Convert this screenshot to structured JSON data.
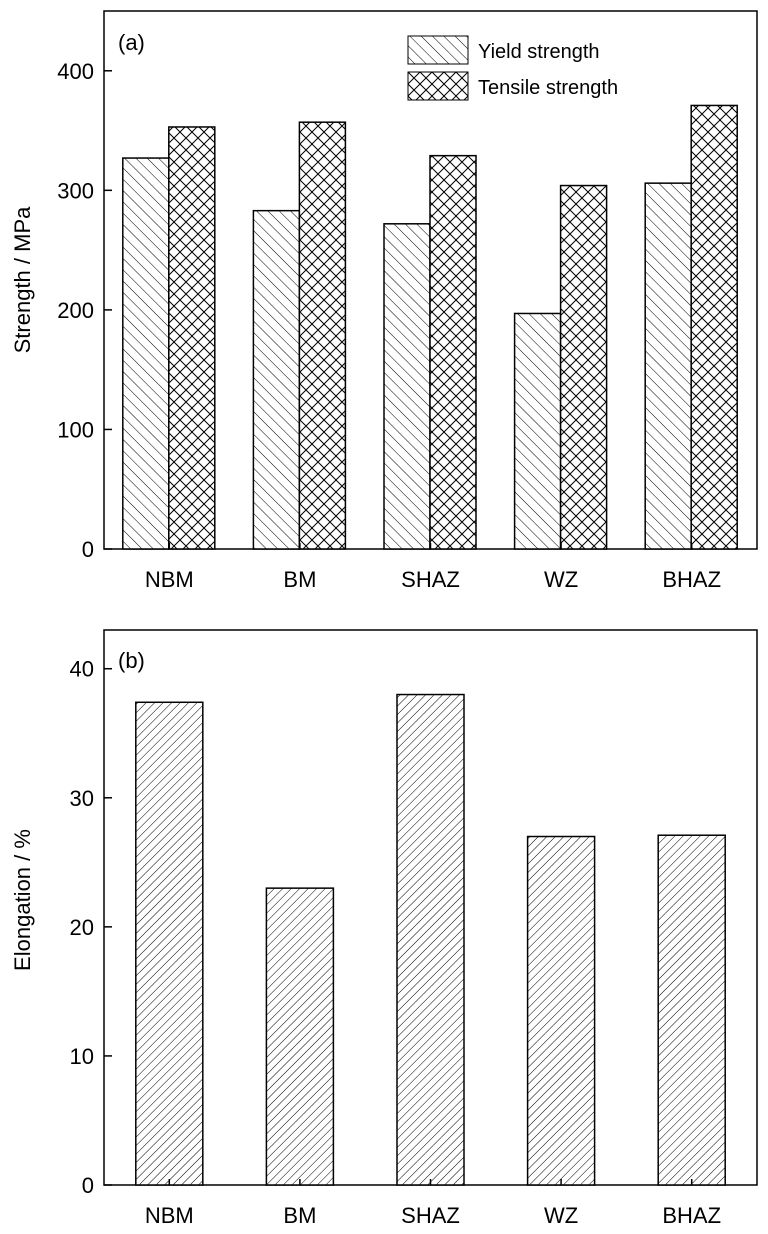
{
  "chart_data": [
    {
      "type": "bar",
      "panel_label": "(a)",
      "categories": [
        "NBM",
        "BM",
        "SHAZ",
        "WZ",
        "BHAZ"
      ],
      "series": [
        {
          "name": "Yield strength",
          "values": [
            327,
            283,
            272,
            197,
            306
          ],
          "hatch": "diagonal-backslash"
        },
        {
          "name": "Tensile strength",
          "values": [
            353,
            357,
            329,
            304,
            371
          ],
          "hatch": "crosshatch"
        }
      ],
      "ylabel": "Strength / MPa",
      "xlabel": "",
      "ylim": [
        0,
        450
      ],
      "yticks": [
        0,
        100,
        200,
        300,
        400
      ],
      "legend_position": "top-right",
      "grid": false
    },
    {
      "type": "bar",
      "panel_label": "(b)",
      "categories": [
        "NBM",
        "BM",
        "SHAZ",
        "WZ",
        "BHAZ"
      ],
      "series": [
        {
          "values": [
            37.4,
            23.0,
            38.0,
            27.0,
            27.1
          ],
          "hatch": "diagonal-slash"
        }
      ],
      "ylabel": "Elongation / %",
      "xlabel": "",
      "ylim": [
        0,
        43
      ],
      "yticks": [
        0,
        10,
        20,
        30,
        40
      ],
      "grid": false
    }
  ]
}
